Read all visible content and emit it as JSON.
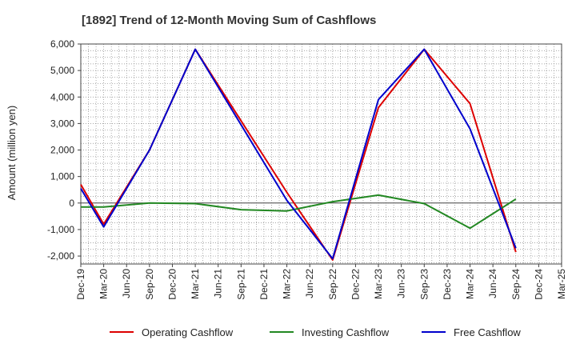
{
  "chart_data": {
    "type": "line",
    "title": "[1892]  Trend of 12-Month Moving Sum of Cashflows",
    "xlabel": "",
    "ylabel": "Amount (million yen)",
    "ylim": [
      -2300,
      6000
    ],
    "yticks": [
      -2000,
      -1000,
      0,
      1000,
      2000,
      3000,
      4000,
      5000,
      6000
    ],
    "ytick_labels": [
      "-2,000",
      "-1,000",
      "0",
      "1,000",
      "2,000",
      "3,000",
      "4,000",
      "5,000",
      "6,000"
    ],
    "grid": true,
    "legend_position": "bottom",
    "x_tick_labels": [
      "Dec-19",
      "Mar-20",
      "Jun-20",
      "Sep-20",
      "Dec-20",
      "Mar-21",
      "Jun-21",
      "Sep-21",
      "Dec-21",
      "Mar-22",
      "Jun-22",
      "Sep-22",
      "Dec-22",
      "Mar-23",
      "Jun-23",
      "Sep-23",
      "Dec-23",
      "Mar-24",
      "Jun-24",
      "Sep-24",
      "Dec-24",
      "Mar-25"
    ],
    "series": [
      {
        "name": "Operating Cashflow",
        "color": "#dd0000",
        "points": [
          {
            "x": "Dec-19",
            "y": 700
          },
          {
            "x": "Mar-20",
            "y": -800
          },
          {
            "x": "Sep-20",
            "y": 2000
          },
          {
            "x": "Mar-21",
            "y": 5800
          },
          {
            "x": "Mar-22",
            "y": 400
          },
          {
            "x": "Sep-22",
            "y": -2150
          },
          {
            "x": "Mar-23",
            "y": 3600
          },
          {
            "x": "Sep-23",
            "y": 5800
          },
          {
            "x": "Mar-24",
            "y": 3750
          },
          {
            "x": "Sep-24",
            "y": -1850
          }
        ]
      },
      {
        "name": "Investing Cashflow",
        "color": "#228822",
        "points": [
          {
            "x": "Dec-19",
            "y": -150
          },
          {
            "x": "Mar-20",
            "y": -150
          },
          {
            "x": "Sep-20",
            "y": 0
          },
          {
            "x": "Mar-21",
            "y": -20
          },
          {
            "x": "Sep-21",
            "y": -250
          },
          {
            "x": "Mar-22",
            "y": -300
          },
          {
            "x": "Sep-22",
            "y": 50
          },
          {
            "x": "Mar-23",
            "y": 300
          },
          {
            "x": "Sep-23",
            "y": -20
          },
          {
            "x": "Mar-24",
            "y": -950
          },
          {
            "x": "Sep-24",
            "y": 150
          }
        ]
      },
      {
        "name": "Free Cashflow",
        "color": "#0000cc",
        "points": [
          {
            "x": "Dec-19",
            "y": 550
          },
          {
            "x": "Mar-20",
            "y": -900
          },
          {
            "x": "Sep-20",
            "y": 2000
          },
          {
            "x": "Mar-21",
            "y": 5800
          },
          {
            "x": "Mar-22",
            "y": 100
          },
          {
            "x": "Sep-22",
            "y": -2100
          },
          {
            "x": "Mar-23",
            "y": 3900
          },
          {
            "x": "Sep-23",
            "y": 5800
          },
          {
            "x": "Mar-24",
            "y": 2800
          },
          {
            "x": "Sep-24",
            "y": -1700
          }
        ]
      }
    ]
  }
}
